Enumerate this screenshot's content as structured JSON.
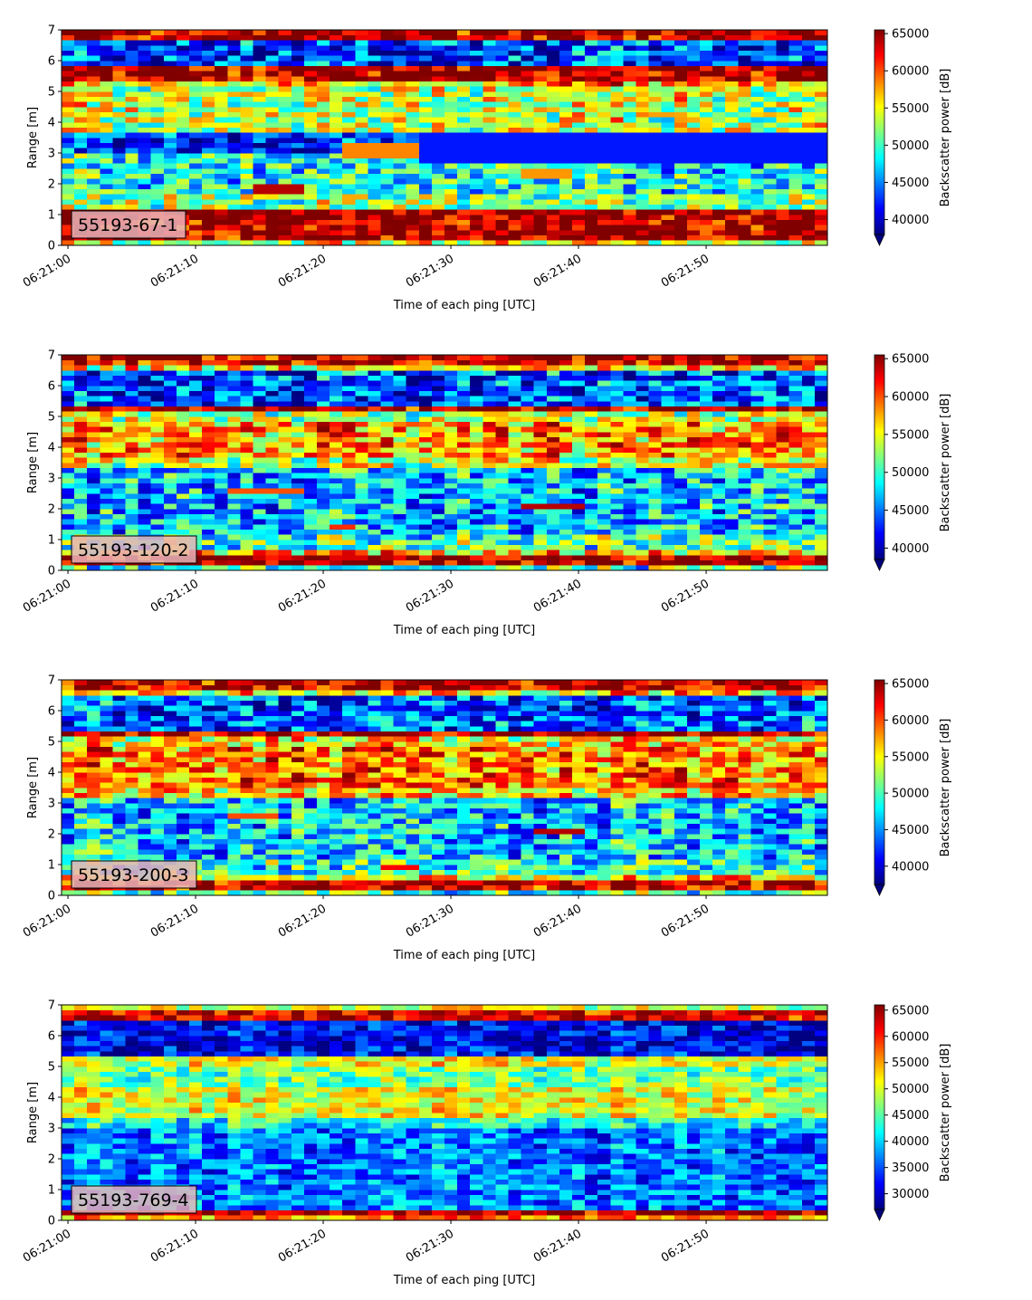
{
  "chart_data": [
    {
      "type": "heatmap",
      "label": "55193-67-1",
      "xlabel": "Time of each ping [UTC]",
      "ylabel": "Range [m]",
      "xticks": [
        "06:21:00",
        "06:21:10",
        "06:21:20",
        "06:21:30",
        "06:21:40",
        "06:21:50"
      ],
      "xlim_seconds": [
        -0.5,
        59.5
      ],
      "ylim": [
        0,
        7
      ],
      "yticks": [
        0,
        1,
        2,
        3,
        4,
        5,
        6,
        7
      ],
      "colormap": "jet",
      "colorbar_label": "Backscatter power [dB]",
      "colorbar_range": [
        38000,
        65500
      ],
      "colorbar_ticks": [
        40000,
        45000,
        50000,
        55000,
        60000,
        65000
      ],
      "colorbar_extend": "min",
      "bands": [
        {
          "from": 0.0,
          "to": 0.25,
          "value": 55000
        },
        {
          "from": 0.25,
          "to": 1.15,
          "value": 65000
        },
        {
          "from": 1.15,
          "to": 1.6,
          "value": 52000
        },
        {
          "from": 1.6,
          "to": 3.0,
          "value": 49000
        },
        {
          "from": 3.0,
          "to": 3.6,
          "value": 43000
        },
        {
          "from": 3.6,
          "to": 5.2,
          "value": 54000
        },
        {
          "from": 5.2,
          "to": 5.35,
          "value": 58000
        },
        {
          "from": 5.35,
          "to": 5.8,
          "value": 65000
        },
        {
          "from": 5.8,
          "to": 6.6,
          "value": 43500
        },
        {
          "from": 6.6,
          "to": 6.7,
          "value": 52000
        },
        {
          "from": 6.7,
          "to": 7.0,
          "value": 65000
        }
      ],
      "features": [
        {
          "t_start": 15.5,
          "t_end": 19.5,
          "r_start": 1.7,
          "r_end": 2.05,
          "value": 64000
        },
        {
          "t_start": 36.5,
          "t_end": 40.5,
          "r_start": 2.1,
          "r_end": 2.5,
          "value": 58000
        },
        {
          "t_start": 22,
          "t_end": 30,
          "r_start": 2.85,
          "r_end": 3.3,
          "value": 58500
        },
        {
          "t_start": 28,
          "t_end": 60,
          "r_start": 2.7,
          "r_end": 3.6,
          "value": 42000
        }
      ]
    },
    {
      "type": "heatmap",
      "label": "55193-120-2",
      "xlabel": "Time of each ping [UTC]",
      "ylabel": "Range [m]",
      "xticks": [
        "06:21:00",
        "06:21:10",
        "06:21:20",
        "06:21:30",
        "06:21:40",
        "06:21:50"
      ],
      "xlim_seconds": [
        -0.5,
        59.5
      ],
      "ylim": [
        0,
        7
      ],
      "yticks": [
        0,
        1,
        2,
        3,
        4,
        5,
        6,
        7
      ],
      "colormap": "jet",
      "colorbar_label": "Backscatter power [dB]",
      "colorbar_range": [
        38500,
        65500
      ],
      "colorbar_ticks": [
        40000,
        45000,
        50000,
        55000,
        60000,
        65000
      ],
      "colorbar_extend": "min",
      "bands": [
        {
          "from": 0.0,
          "to": 0.1,
          "value": 50000
        },
        {
          "from": 0.1,
          "to": 0.45,
          "value": 65000
        },
        {
          "from": 0.45,
          "to": 0.6,
          "value": 57000
        },
        {
          "from": 0.6,
          "to": 1.2,
          "value": 50500
        },
        {
          "from": 1.2,
          "to": 3.3,
          "value": 47000
        },
        {
          "from": 3.3,
          "to": 3.7,
          "value": 54000
        },
        {
          "from": 3.7,
          "to": 4.8,
          "value": 58000
        },
        {
          "from": 4.8,
          "to": 5.2,
          "value": 54000
        },
        {
          "from": 5.2,
          "to": 5.35,
          "value": 65000
        },
        {
          "from": 5.35,
          "to": 6.55,
          "value": 44000
        },
        {
          "from": 6.55,
          "to": 6.7,
          "value": 56000
        },
        {
          "from": 6.7,
          "to": 7.0,
          "value": 64000
        }
      ],
      "features": [
        {
          "t_start": 36,
          "t_end": 41,
          "r_start": 1.95,
          "r_end": 2.2,
          "value": 64000
        },
        {
          "t_start": 13,
          "t_end": 19,
          "r_start": 2.5,
          "r_end": 2.7,
          "value": 60000
        },
        {
          "t_start": 21.5,
          "t_end": 23.5,
          "r_start": 1.3,
          "r_end": 1.45,
          "value": 61000
        }
      ]
    },
    {
      "type": "heatmap",
      "label": "55193-200-3",
      "xlabel": "Time of each ping [UTC]",
      "ylabel": "Range [m]",
      "xticks": [
        "06:21:00",
        "06:21:10",
        "06:21:20",
        "06:21:30",
        "06:21:40",
        "06:21:50"
      ],
      "xlim_seconds": [
        -0.5,
        59.5
      ],
      "ylim": [
        0,
        7
      ],
      "yticks": [
        0,
        1,
        2,
        3,
        4,
        5,
        6,
        7
      ],
      "colormap": "jet",
      "colorbar_label": "Backscatter power [dB]",
      "colorbar_range": [
        37500,
        65500
      ],
      "colorbar_ticks": [
        40000,
        45000,
        50000,
        55000,
        60000,
        65000
      ],
      "colorbar_extend": "min",
      "bands": [
        {
          "from": 0.0,
          "to": 0.1,
          "value": 50000
        },
        {
          "from": 0.1,
          "to": 0.45,
          "value": 64000
        },
        {
          "from": 0.45,
          "to": 0.6,
          "value": 56000
        },
        {
          "from": 0.6,
          "to": 1.2,
          "value": 49000
        },
        {
          "from": 1.2,
          "to": 3.1,
          "value": 46500
        },
        {
          "from": 3.1,
          "to": 3.5,
          "value": 56000
        },
        {
          "from": 3.5,
          "to": 4.8,
          "value": 58500
        },
        {
          "from": 4.8,
          "to": 5.2,
          "value": 55000
        },
        {
          "from": 5.2,
          "to": 5.35,
          "value": 65000
        },
        {
          "from": 5.35,
          "to": 6.5,
          "value": 43500
        },
        {
          "from": 6.5,
          "to": 6.65,
          "value": 56000
        },
        {
          "from": 6.65,
          "to": 7.0,
          "value": 64000
        }
      ],
      "features": [
        {
          "t_start": 37,
          "t_end": 41,
          "r_start": 1.95,
          "r_end": 2.15,
          "value": 64000
        },
        {
          "t_start": 13,
          "t_end": 17.5,
          "r_start": 2.5,
          "r_end": 2.65,
          "value": 60000
        },
        {
          "t_start": 25.5,
          "t_end": 28.5,
          "r_start": 0.9,
          "r_end": 1.05,
          "value": 62000
        }
      ]
    },
    {
      "type": "heatmap",
      "label": "55193-769-4",
      "xlabel": "Time of each ping [UTC]",
      "ylabel": "Range [m]",
      "xticks": [
        "06:21:00",
        "06:21:10",
        "06:21:20",
        "06:21:30",
        "06:21:40",
        "06:21:50"
      ],
      "xlim_seconds": [
        -0.5,
        59.5
      ],
      "ylim": [
        0,
        7
      ],
      "yticks": [
        0,
        1,
        2,
        3,
        4,
        5,
        6,
        7
      ],
      "colormap": "jet",
      "colorbar_label": "Backscatter power [dB]",
      "colorbar_range": [
        27000,
        66000
      ],
      "colorbar_ticks": [
        30000,
        35000,
        40000,
        45000,
        50000,
        55000,
        60000,
        65000
      ],
      "colorbar_extend": "min",
      "bands": [
        {
          "from": 0.0,
          "to": 0.15,
          "value": 56000
        },
        {
          "from": 0.15,
          "to": 0.28,
          "value": 64000
        },
        {
          "from": 0.28,
          "to": 0.4,
          "value": 44000
        },
        {
          "from": 0.4,
          "to": 3.0,
          "value": 36500
        },
        {
          "from": 3.0,
          "to": 3.3,
          "value": 42000
        },
        {
          "from": 3.3,
          "to": 4.3,
          "value": 50500
        },
        {
          "from": 4.3,
          "to": 5.0,
          "value": 46000
        },
        {
          "from": 5.0,
          "to": 5.3,
          "value": 50500
        },
        {
          "from": 5.3,
          "to": 6.5,
          "value": 31500
        },
        {
          "from": 6.5,
          "to": 6.75,
          "value": 62000
        },
        {
          "from": 6.75,
          "to": 7.0,
          "value": 50000
        }
      ],
      "features": []
    }
  ]
}
